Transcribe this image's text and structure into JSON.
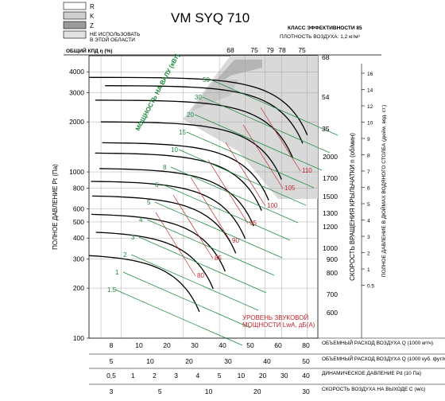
{
  "chart_data": {
    "type": "line",
    "title": "VM SYQ 710",
    "efficiency_class": "КЛАСС ЭФФЕКТИВНОСТИ 85",
    "air_density": "ПЛОТНОСТЬ ВОЗДУХА: 1,2 кг/м³",
    "legend": [
      {
        "key": "R",
        "color": "#ffffff"
      },
      {
        "key": "K",
        "color": "#cfcfcf"
      },
      {
        "key": "Z",
        "color": "#9a9a9a"
      },
      {
        "key": "НЕ ИСПОЛЬЗОВАТЬ В ЭТОЙ ОБЛАСТИ",
        "color": "#e2e2e2"
      }
    ],
    "efficiency_label": "ОБЩИЙ КПД η (%)",
    "efficiency_ticks": [
      "68",
      "75",
      "79",
      "78",
      "75"
    ],
    "left_axis_label": "ПОЛНОЕ ДАВЛЕНИЕ Pt (Па)",
    "left_ticks": [
      "4000",
      "3000",
      "2000",
      "1000",
      "800",
      "600",
      "500",
      "400",
      "300",
      "200",
      "100"
    ],
    "speed_axis_label": "СКОРОСТЬ ВРАЩЕНИЯ КРЫЛЬЧАТКИ n (об/мин)",
    "speed_ticks": [
      "2000",
      "1700",
      "1500",
      "1300",
      "1200",
      "1000",
      "900",
      "800",
      "700",
      "600"
    ],
    "speed_band_labels": [
      "68",
      "54",
      "35"
    ],
    "right_axis_label": "ПОЛНОЕ ДАВЛЕНИЕ В ДЮЙМАХ ВОДЯНОГО СТОЛБА (дюйм. вод. ст.)",
    "right_ticks": [
      "16",
      "14",
      "12",
      "10",
      "9",
      "8",
      "7",
      "6",
      "5",
      "4",
      "3",
      "2",
      "1",
      "0.5"
    ],
    "power_label": "МОЩНОСТЬ НА ВАЛУ (кВт)",
    "power_values": [
      "50",
      "30",
      "20",
      "15",
      "10",
      "8",
      "6",
      "5",
      "4",
      "3",
      "2",
      "1",
      "1.5"
    ],
    "sound_label": "УРОВЕНЬ ЗВУКОВОЙ МОЩНОСТИ LwA, дБ(A)",
    "sound_values": [
      "110",
      "105",
      "100",
      "95",
      "90",
      "85",
      "80"
    ],
    "bottom_scales": [
      {
        "label": "ОБЪЕМНЫЙ РАСХОД ВОЗДУХА Q (1000 м³/ч)",
        "ticks": [
          "8",
          "10",
          "20",
          "30",
          "40",
          "50",
          "60",
          "80"
        ]
      },
      {
        "label": "ОБЪЕМНЫЙ РАСХОД ВОЗДУХА Q (1000 куб. фут/мин)",
        "ticks": [
          "5",
          "10",
          "20",
          "30",
          "40",
          "50"
        ]
      },
      {
        "label": "ДИНАМИЧЕСКОЕ ДАВЛЕНИЕ Pd (10 Па)",
        "ticks": [
          "0,5",
          "1",
          "2",
          "3",
          "4",
          "5",
          "10",
          "20",
          "30",
          "40"
        ]
      },
      {
        "label": "СКОРОСТЬ ВОЗДУХА НА ВЫХОДЕ С (м/с)",
        "ticks": [
          "3",
          "5",
          "10",
          "20",
          "30"
        ]
      }
    ],
    "xlim": [
      7,
      90
    ],
    "ylim": [
      100,
      5000
    ],
    "log_scale_x": true,
    "log_scale_y": true,
    "fan_curves": [
      {
        "rpm": 2000,
        "pressure_max": 3700
      },
      {
        "rpm": 1900,
        "pressure_max": 3300
      },
      {
        "rpm": 1700,
        "pressure_max": 2700
      },
      {
        "rpm": 1500,
        "pressure_max": 2000
      },
      {
        "rpm": 1300,
        "pressure_max": 1500
      },
      {
        "rpm": 1200,
        "pressure_max": 1300
      },
      {
        "rpm": 1100,
        "pressure_max": 1050
      },
      {
        "rpm": 1000,
        "pressure_max": 880
      },
      {
        "rpm": 900,
        "pressure_max": 720
      },
      {
        "rpm": 800,
        "pressure_max": 560
      },
      {
        "rpm": 700,
        "pressure_max": 440
      },
      {
        "rpm": 600,
        "pressure_max": 320
      }
    ]
  }
}
